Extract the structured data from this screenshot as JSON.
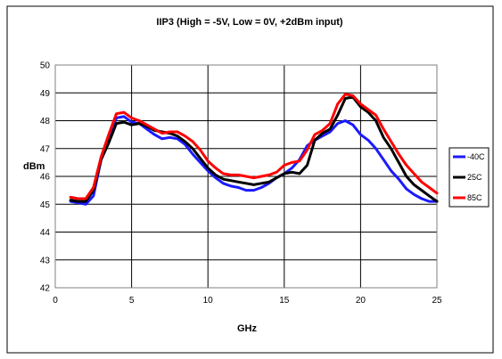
{
  "chart_data": {
    "type": "line",
    "title": "IIP3 (High = -5V, Low = 0V, +2dBm input)",
    "xlabel": "GHz",
    "ylabel": "dBm",
    "xlim": [
      0,
      25
    ],
    "ylim": [
      42,
      50
    ],
    "x_ticks": [
      0,
      5,
      10,
      15,
      20,
      25
    ],
    "y_ticks": [
      42,
      43,
      44,
      45,
      46,
      47,
      48,
      49,
      50
    ],
    "grid": "horizontal and vertical major gridlines",
    "legend_position": "right",
    "series": [
      {
        "name": "-40C",
        "color": "#1a1aff",
        "x": [
          1,
          1.5,
          2,
          2.5,
          3,
          3.5,
          4,
          4.5,
          5,
          5.5,
          6,
          6.5,
          7,
          7.5,
          8,
          8.5,
          9,
          9.5,
          10,
          10.5,
          11,
          11.5,
          12,
          12.5,
          13,
          13.5,
          14,
          14.5,
          15,
          15.5,
          16,
          16.5,
          17,
          17.5,
          18,
          18.5,
          19,
          19.5,
          20,
          20.5,
          21,
          21.5,
          22,
          22.5,
          23,
          23.5,
          24,
          24.5,
          25
        ],
        "y": [
          45.1,
          45.05,
          45.0,
          45.3,
          46.6,
          47.3,
          48.1,
          48.15,
          47.95,
          47.9,
          47.7,
          47.5,
          47.35,
          47.4,
          47.35,
          47.15,
          46.8,
          46.5,
          46.2,
          45.95,
          45.75,
          45.65,
          45.6,
          45.5,
          45.5,
          45.6,
          45.75,
          45.95,
          46.1,
          46.3,
          46.6,
          47.1,
          47.3,
          47.45,
          47.6,
          47.9,
          48.0,
          47.85,
          47.5,
          47.3,
          47.0,
          46.6,
          46.2,
          45.9,
          45.55,
          45.35,
          45.2,
          45.1,
          45.1
        ]
      },
      {
        "name": "25C",
        "color": "#000000",
        "x": [
          1,
          1.5,
          2,
          2.5,
          3,
          3.5,
          4,
          4.5,
          5,
          5.5,
          6,
          6.5,
          7,
          7.5,
          8,
          8.5,
          9,
          9.5,
          10,
          10.5,
          11,
          11.5,
          12,
          12.5,
          13,
          13.5,
          14,
          14.5,
          15,
          15.5,
          16,
          16.5,
          17,
          17.5,
          18,
          18.5,
          19,
          19.5,
          20,
          20.5,
          21,
          21.5,
          22,
          22.5,
          23,
          23.5,
          24,
          24.5,
          25
        ],
        "y": [
          45.15,
          45.1,
          45.1,
          45.5,
          46.6,
          47.2,
          47.9,
          47.95,
          47.85,
          47.9,
          47.8,
          47.65,
          47.6,
          47.55,
          47.45,
          47.25,
          47.0,
          46.65,
          46.3,
          46.05,
          45.9,
          45.85,
          45.8,
          45.75,
          45.7,
          45.75,
          45.8,
          45.95,
          46.1,
          46.15,
          46.1,
          46.4,
          47.3,
          47.55,
          47.7,
          48.2,
          48.8,
          48.85,
          48.5,
          48.3,
          48.0,
          47.4,
          47.0,
          46.5,
          46.0,
          45.7,
          45.5,
          45.3,
          45.1
        ]
      },
      {
        "name": "85C",
        "color": "#ff0000",
        "x": [
          1,
          1.5,
          2,
          2.5,
          3,
          3.5,
          4,
          4.5,
          5,
          5.5,
          6,
          6.5,
          7,
          7.5,
          8,
          8.5,
          9,
          9.5,
          10,
          10.5,
          11,
          11.5,
          12,
          12.5,
          13,
          13.5,
          14,
          14.5,
          15,
          15.5,
          16,
          16.5,
          17,
          17.5,
          18,
          18.5,
          19,
          19.5,
          20,
          20.5,
          21,
          21.5,
          22,
          22.5,
          23,
          23.5,
          24,
          24.5,
          25
        ],
        "y": [
          45.25,
          45.2,
          45.2,
          45.6,
          46.7,
          47.5,
          48.25,
          48.3,
          48.1,
          48.0,
          47.85,
          47.7,
          47.55,
          47.6,
          47.6,
          47.45,
          47.25,
          46.95,
          46.55,
          46.3,
          46.1,
          46.05,
          46.05,
          46.0,
          45.95,
          46.0,
          46.05,
          46.15,
          46.4,
          46.5,
          46.55,
          46.95,
          47.5,
          47.65,
          47.9,
          48.6,
          48.95,
          48.9,
          48.6,
          48.4,
          48.2,
          47.7,
          47.25,
          46.8,
          46.4,
          46.1,
          45.8,
          45.6,
          45.4
        ]
      }
    ]
  }
}
